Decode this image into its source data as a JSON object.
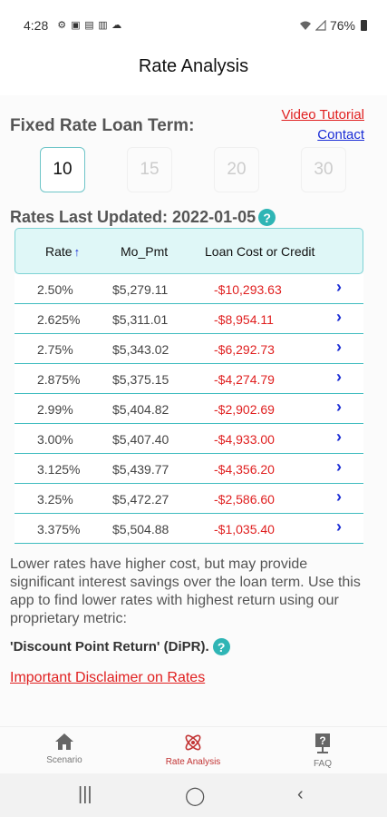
{
  "status_bar": {
    "time": "4:28",
    "left_icons": [
      "settings-icon",
      "gallery-icon",
      "cast-icon",
      "screen-icon",
      "cloud-icon"
    ],
    "right_icons": [
      "wifi-icon",
      "signal-icon"
    ],
    "battery": "76%"
  },
  "header": {
    "title": "Rate Analysis"
  },
  "term": {
    "label": "Fixed Rate Loan Term:",
    "options": [
      "10",
      "15",
      "20",
      "30"
    ],
    "selected": "10"
  },
  "links": {
    "video": "Video Tutorial",
    "contact": "Contact"
  },
  "updated": {
    "label": "Rates Last Updated: 2022-01-05",
    "help": "?"
  },
  "table": {
    "headers": {
      "rate": "Rate",
      "sort_arrow": "↑",
      "pmt": "Mo_Pmt",
      "cost": "Loan Cost or Credit"
    },
    "rows": [
      {
        "rate": "2.50%",
        "pmt": "$5,279.11",
        "cost": "-$10,293.63"
      },
      {
        "rate": "2.625%",
        "pmt": "$5,311.01",
        "cost": "-$8,954.11"
      },
      {
        "rate": "2.75%",
        "pmt": "$5,343.02",
        "cost": "-$6,292.73"
      },
      {
        "rate": "2.875%",
        "pmt": "$5,375.15",
        "cost": "-$4,274.79"
      },
      {
        "rate": "2.99%",
        "pmt": "$5,404.82",
        "cost": "-$2,902.69"
      },
      {
        "rate": "3.00%",
        "pmt": "$5,407.40",
        "cost": "-$4,933.00"
      },
      {
        "rate": "3.125%",
        "pmt": "$5,439.77",
        "cost": "-$4,356.20"
      },
      {
        "rate": "3.25%",
        "pmt": "$5,472.27",
        "cost": "-$2,586.60"
      },
      {
        "rate": "3.375%",
        "pmt": "$5,504.88",
        "cost": "-$1,035.40"
      }
    ]
  },
  "description": {
    "text": "Lower rates have higher cost, but may provide significant interest savings over the loan term. Use this app to find lower rates with highest return using our proprietary metric:",
    "metric": "'Discount Point Return' (DiPR).",
    "help": "?"
  },
  "disclaimer": "Important Disclaimer on Rates",
  "bottom_nav": [
    {
      "label": "Scenario",
      "icon": "home-icon",
      "active": false
    },
    {
      "label": "Rate Analysis",
      "icon": "atom-icon",
      "active": true
    },
    {
      "label": "FAQ",
      "icon": "question-board-icon",
      "active": false
    }
  ],
  "system_nav": [
    "recents-icon",
    "home-circle-icon",
    "back-icon"
  ],
  "colors": {
    "accent_teal": "#3fbcbf",
    "header_bg": "#dff7f7",
    "red": "#e02020",
    "blue": "#1a2dd6"
  }
}
